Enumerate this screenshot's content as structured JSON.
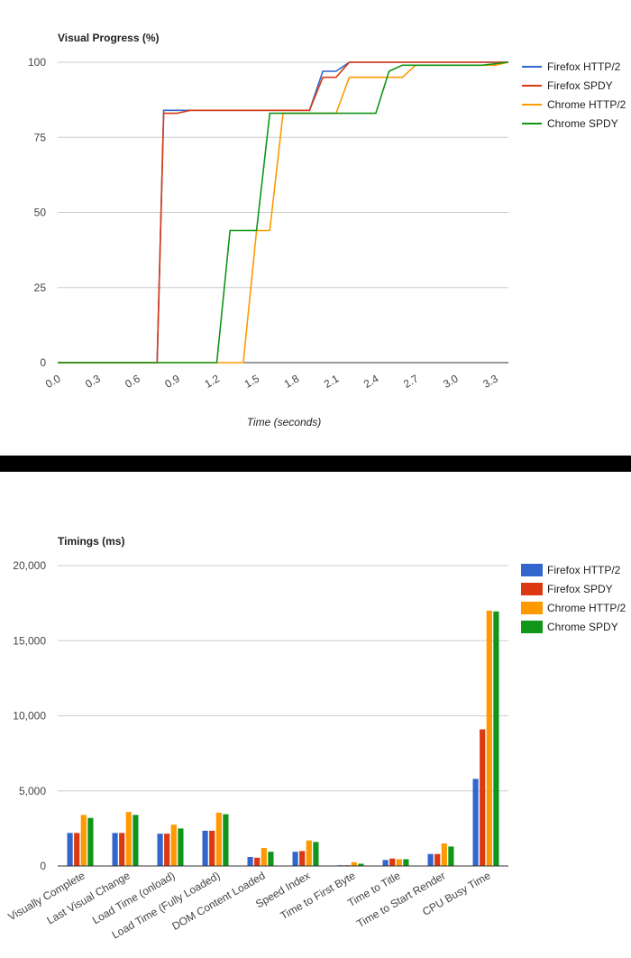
{
  "chart_data": [
    {
      "type": "line",
      "title": "Visual Progress (%)",
      "xlabel": "Time (seconds)",
      "ylabel": "",
      "xlim": [
        0,
        3.4
      ],
      "ylim": [
        0,
        100
      ],
      "x_ticks": [
        "0.0",
        "0.3",
        "0.6",
        "0.9",
        "1.2",
        "1.5",
        "1.8",
        "2.1",
        "2.4",
        "2.7",
        "3.0",
        "3.3"
      ],
      "y_ticks": [
        "0",
        "25",
        "50",
        "75",
        "100"
      ],
      "grid": true,
      "legend_position": "right",
      "series": [
        {
          "name": "Firefox HTTP/2",
          "color": "#3366cc",
          "points": [
            [
              0,
              0
            ],
            [
              0.75,
              0
            ],
            [
              0.8,
              84
            ],
            [
              1.2,
              84
            ],
            [
              1.9,
              84
            ],
            [
              2.0,
              97
            ],
            [
              2.1,
              97
            ],
            [
              2.2,
              100
            ],
            [
              3.4,
              100
            ]
          ]
        },
        {
          "name": "Firefox SPDY",
          "color": "#dc3912",
          "points": [
            [
              0,
              0
            ],
            [
              0.75,
              0
            ],
            [
              0.8,
              83
            ],
            [
              0.9,
              83
            ],
            [
              1.0,
              84
            ],
            [
              1.9,
              84
            ],
            [
              2.0,
              95
            ],
            [
              2.1,
              95
            ],
            [
              2.2,
              100
            ],
            [
              3.4,
              100
            ]
          ]
        },
        {
          "name": "Chrome HTTP/2",
          "color": "#ff9900",
          "points": [
            [
              0,
              0
            ],
            [
              1.4,
              0
            ],
            [
              1.5,
              44
            ],
            [
              1.6,
              44
            ],
            [
              1.7,
              83
            ],
            [
              2.1,
              83
            ],
            [
              2.2,
              95
            ],
            [
              2.6,
              95
            ],
            [
              2.7,
              99
            ],
            [
              3.3,
              99
            ],
            [
              3.4,
              100
            ]
          ]
        },
        {
          "name": "Chrome SPDY",
          "color": "#109618",
          "points": [
            [
              0,
              0
            ],
            [
              1.2,
              0
            ],
            [
              1.3,
              44
            ],
            [
              1.5,
              44
            ],
            [
              1.6,
              83
            ],
            [
              2.4,
              83
            ],
            [
              2.5,
              97
            ],
            [
              2.6,
              99
            ],
            [
              3.2,
              99
            ],
            [
              3.4,
              100
            ]
          ]
        }
      ]
    },
    {
      "type": "bar",
      "title": "Timings (ms)",
      "xlabel": "",
      "ylabel": "",
      "ylim": [
        0,
        20000
      ],
      "y_ticks": [
        "0",
        "5,000",
        "10,000",
        "15,000",
        "20,000"
      ],
      "grid": true,
      "legend_position": "right",
      "categories": [
        "Visually Complete",
        "Last Visual Change",
        "Load Time (onload)",
        "Load Time (Fully Loaded)",
        "DOM Content Loaded",
        "Speed Index",
        "Time to First Byte",
        "Time to Title",
        "Time to Start Render",
        "CPU Busy Time"
      ],
      "series": [
        {
          "name": "Firefox HTTP/2",
          "color": "#3366cc",
          "values": [
            2200,
            2200,
            2150,
            2350,
            600,
            950,
            50,
            400,
            800,
            5800
          ]
        },
        {
          "name": "Firefox SPDY",
          "color": "#dc3912",
          "values": [
            2200,
            2200,
            2150,
            2350,
            550,
            1000,
            50,
            500,
            800,
            9100
          ]
        },
        {
          "name": "Chrome HTTP/2",
          "color": "#ff9900",
          "values": [
            3400,
            3600,
            2750,
            3550,
            1200,
            1700,
            250,
            450,
            1500,
            17000
          ]
        },
        {
          "name": "Chrome SPDY",
          "color": "#109618",
          "values": [
            3200,
            3400,
            2500,
            3450,
            950,
            1600,
            150,
            450,
            1300,
            16950
          ]
        }
      ]
    }
  ]
}
